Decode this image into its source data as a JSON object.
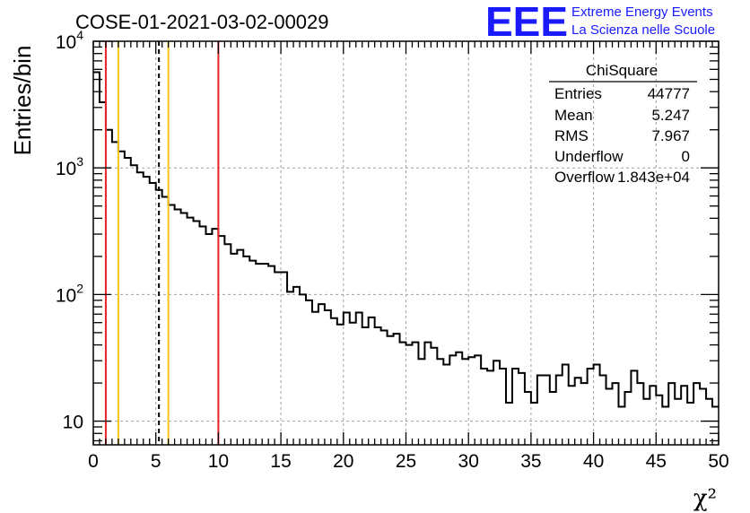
{
  "header": {
    "title": "COSE-01-2021-03-02-00029",
    "logo": "EEE",
    "logo_line1": "Extreme Energy Events",
    "logo_line2": "La Scienza nelle Scuole"
  },
  "stats": {
    "title": "ChiSquare",
    "rows": [
      {
        "label": "Entries",
        "value": "44777"
      },
      {
        "label": "Mean",
        "value": "5.247"
      },
      {
        "label": "RMS",
        "value": "7.967"
      },
      {
        "label": "Underflow",
        "value": "0"
      },
      {
        "label": "Overflow",
        "value": "1.843e+04"
      }
    ]
  },
  "colors": {
    "hist": "#000000",
    "red_line": "#e8242a",
    "yellow_line": "#f5c518",
    "dashed_line": "#000000",
    "grid": "#a0a0a0",
    "logo": "#1a1aff"
  },
  "chart_data": {
    "type": "bar",
    "style": "step-histogram",
    "xlabel": "χ²",
    "ylabel": "Entries/bin",
    "xlim": [
      0,
      50
    ],
    "ylim": [
      6.5,
      10000
    ],
    "yscale": "log",
    "grid": true,
    "bin_width": 0.5,
    "x_ticks": [
      0,
      5,
      10,
      15,
      20,
      25,
      30,
      35,
      40,
      45,
      50
    ],
    "x_tick_labels": [
      "0",
      "5",
      "10",
      "15",
      "20",
      "25",
      "30",
      "35",
      "40",
      "45",
      "50"
    ],
    "y_ticks": [
      {
        "value": 10,
        "base": "10",
        "exp": ""
      },
      {
        "value": 100,
        "base": "10",
        "exp": "2"
      },
      {
        "value": 1000,
        "base": "10",
        "exp": "3"
      },
      {
        "value": 10000,
        "base": "10",
        "exp": "4"
      }
    ],
    "values": [
      5700,
      3300,
      2000,
      1600,
      1350,
      1200,
      1050,
      920,
      850,
      760,
      670,
      590,
      510,
      470,
      440,
      405,
      380,
      345,
      300,
      330,
      290,
      250,
      210,
      225,
      200,
      185,
      175,
      175,
      168,
      150,
      150,
      105,
      115,
      100,
      90,
      73,
      84,
      75,
      65,
      58,
      72,
      60,
      72,
      55,
      66,
      55,
      52,
      47,
      49,
      42,
      40,
      42,
      31,
      42,
      38,
      31,
      28,
      33,
      35,
      31,
      32,
      33,
      26,
      25,
      30,
      26,
      14,
      26,
      24,
      17,
      14,
      23,
      23,
      17,
      23,
      28,
      19,
      22,
      20,
      26,
      28,
      23,
      18,
      20,
      13,
      17,
      25,
      20,
      15,
      19,
      16,
      13,
      20,
      15,
      19,
      14,
      20,
      18,
      15,
      13
    ],
    "markers": [
      {
        "x": 1,
        "style": "solid",
        "color": "red"
      },
      {
        "x": 2,
        "style": "solid",
        "color": "yellow"
      },
      {
        "x": 5.247,
        "style": "dashed",
        "color": "black"
      },
      {
        "x": 6,
        "style": "solid",
        "color": "yellow"
      },
      {
        "x": 10,
        "style": "solid",
        "color": "red"
      }
    ]
  }
}
